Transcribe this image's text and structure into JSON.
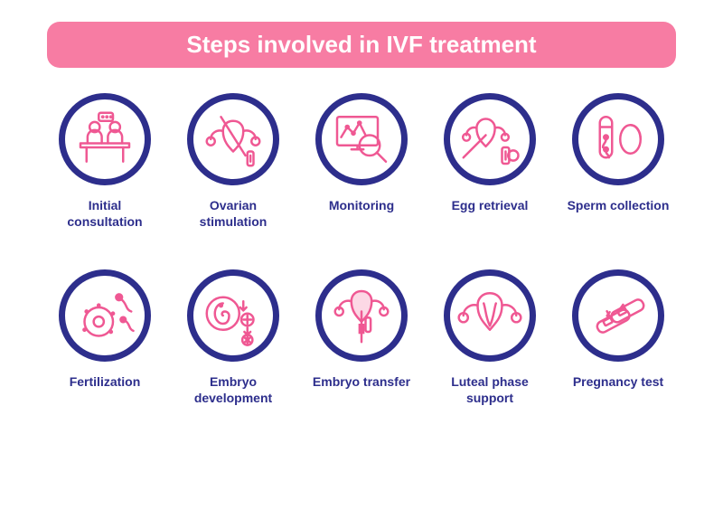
{
  "type": "infographic",
  "title": "Steps involved in IVF treatment",
  "background_color": "#ffffff",
  "title_banner": {
    "background_color": "#f77ca3",
    "text_color": "#ffffff",
    "fontsize": 26,
    "border_radius": 14
  },
  "circle": {
    "diameter": 102,
    "ring_width": 7,
    "ring_color": "#2d2e8c",
    "inner_bg": "#ffffff"
  },
  "icon_color": "#ef5893",
  "label_color": "#2d2e8c",
  "label_fontsize": 14,
  "grid": {
    "columns": 5,
    "rows": 2,
    "col_gap": 22,
    "row_gap": 44
  },
  "steps": [
    {
      "label": "Initial consultation",
      "icon": "consultation"
    },
    {
      "label": "Ovarian stimulation",
      "icon": "ovarian"
    },
    {
      "label": "Monitoring",
      "icon": "monitoring"
    },
    {
      "label": "Egg retrieval",
      "icon": "egg-retrieval"
    },
    {
      "label": "Sperm collection",
      "icon": "sperm-collection"
    },
    {
      "label": "Fertilization",
      "icon": "fertilization"
    },
    {
      "label": "Embryo development",
      "icon": "embryo-dev"
    },
    {
      "label": "Embryo transfer",
      "icon": "embryo-transfer"
    },
    {
      "label": "Luteal phase support",
      "icon": "luteal"
    },
    {
      "label": "Pregnancy test",
      "icon": "pregnancy-test"
    }
  ]
}
